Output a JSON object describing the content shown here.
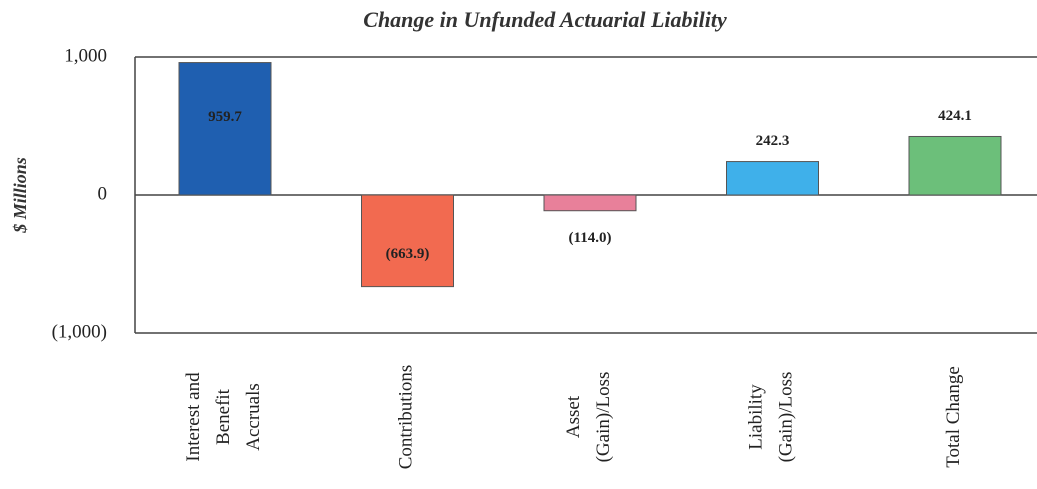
{
  "chart_data": {
    "type": "bar",
    "title": "Change in Unfunded Actuarial Liability",
    "y_label": "$ Millions",
    "categories": [
      "Interest and\nBenefit\nAccruals",
      "Contributions",
      "Asset\n(Gain)/Loss",
      "Liability\n(Gain)/Loss",
      "Total Change"
    ],
    "values": [
      959.7,
      -663.9,
      -114.0,
      242.3,
      424.1
    ],
    "value_labels": [
      "959.7",
      "(663.9)",
      "(114.0)",
      "242.3",
      "424.1"
    ],
    "colors": [
      "#1f5fb0",
      "#f26a50",
      "#e8809a",
      "#3fb0ea",
      "#6cbf7a"
    ],
    "ylim": [
      -1000,
      1000
    ],
    "yticks": [
      {
        "value": 1000,
        "label": "1,000"
      },
      0,
      {
        "value": -1000,
        "label": "(1,000)"
      }
    ]
  }
}
